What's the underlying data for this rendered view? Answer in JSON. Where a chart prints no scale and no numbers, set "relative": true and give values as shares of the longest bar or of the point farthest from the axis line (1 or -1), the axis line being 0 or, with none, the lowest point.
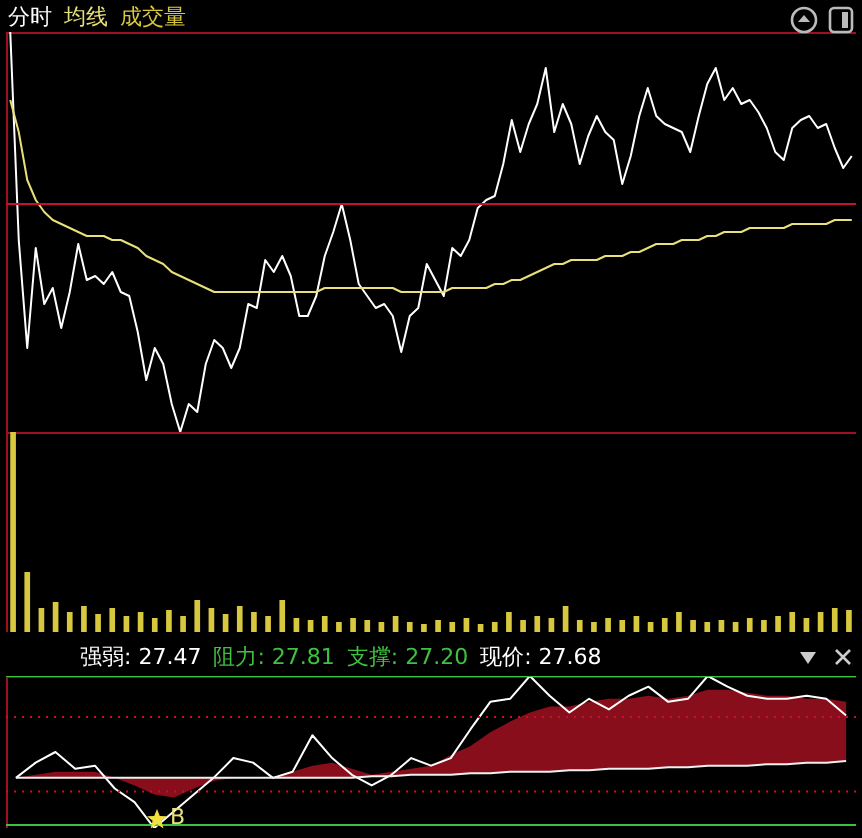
{
  "chart_data": [
    {
      "type": "line",
      "relative": true,
      "legend": "top left",
      "categories": [
        null,
        null,
        null,
        null,
        null,
        null,
        null,
        null,
        null,
        null,
        null,
        null,
        null,
        null,
        null,
        null,
        null,
        null,
        null,
        null,
        null,
        null,
        null,
        null,
        null,
        null,
        null,
        null,
        null,
        null,
        null,
        null,
        null,
        null,
        null,
        null,
        null,
        null,
        null,
        null,
        null,
        null,
        null,
        null,
        null,
        null,
        null,
        null,
        null,
        null,
        null,
        null,
        null,
        null,
        null,
        null,
        null,
        null,
        null,
        null,
        null,
        null,
        null,
        null,
        null,
        null,
        null,
        null,
        null,
        null,
        null,
        null,
        null,
        null,
        null,
        null,
        null,
        null,
        null,
        null,
        null,
        null,
        null,
        null,
        null,
        null,
        null,
        null,
        null,
        null,
        null,
        null,
        null,
        null,
        null,
        null,
        null,
        null,
        null,
        null
      ],
      "series": [
        {
          "name": "分时",
          "color": "#ffffff",
          "values": [
            1.0,
            0.48,
            0.21,
            0.46,
            0.32,
            0.36,
            0.26,
            0.35,
            0.47,
            0.38,
            0.39,
            0.37,
            0.4,
            0.35,
            0.34,
            0.25,
            0.13,
            0.21,
            0.17,
            0.07,
            0.0,
            0.07,
            0.05,
            0.17,
            0.23,
            0.21,
            0.16,
            0.21,
            0.32,
            0.31,
            0.43,
            0.4,
            0.44,
            0.39,
            0.29,
            0.29,
            0.34,
            0.44,
            0.5,
            0.57,
            0.48,
            0.37,
            0.34,
            0.31,
            0.32,
            0.29,
            0.2,
            0.29,
            0.31,
            0.42,
            0.38,
            0.34,
            0.46,
            0.44,
            0.48,
            0.56,
            0.58,
            0.59,
            0.67,
            0.78,
            0.7,
            0.77,
            0.82,
            0.91,
            0.75,
            0.82,
            0.77,
            0.67,
            0.74,
            0.79,
            0.75,
            0.73,
            0.62,
            0.69,
            0.79,
            0.86,
            0.79,
            0.77,
            0.76,
            0.75,
            0.7,
            0.79,
            0.87,
            0.91,
            0.83,
            0.86,
            0.82,
            0.83,
            0.8,
            0.76,
            0.7,
            0.68,
            0.76,
            0.78,
            0.79,
            0.76,
            0.77,
            0.71,
            0.66,
            0.69
          ]
        },
        {
          "name": "均线",
          "color": "#e8e07a",
          "values": [
            0.83,
            0.75,
            0.63,
            0.58,
            0.55,
            0.53,
            0.52,
            0.51,
            0.5,
            0.49,
            0.49,
            0.49,
            0.48,
            0.48,
            0.47,
            0.46,
            0.44,
            0.43,
            0.42,
            0.4,
            0.39,
            0.38,
            0.37,
            0.36,
            0.35,
            0.35,
            0.35,
            0.35,
            0.35,
            0.35,
            0.35,
            0.35,
            0.35,
            0.35,
            0.35,
            0.35,
            0.35,
            0.36,
            0.36,
            0.36,
            0.36,
            0.36,
            0.36,
            0.36,
            0.36,
            0.36,
            0.35,
            0.35,
            0.35,
            0.35,
            0.35,
            0.35,
            0.36,
            0.36,
            0.36,
            0.36,
            0.36,
            0.37,
            0.37,
            0.38,
            0.38,
            0.39,
            0.4,
            0.41,
            0.42,
            0.42,
            0.43,
            0.43,
            0.43,
            0.43,
            0.44,
            0.44,
            0.44,
            0.45,
            0.45,
            0.46,
            0.47,
            0.47,
            0.47,
            0.48,
            0.48,
            0.48,
            0.49,
            0.49,
            0.5,
            0.5,
            0.5,
            0.51,
            0.51,
            0.51,
            0.51,
            0.51,
            0.52,
            0.52,
            0.52,
            0.52,
            0.52,
            0.53,
            0.53,
            0.53
          ]
        }
      ],
      "ref_lines": [
        {
          "axis": "y",
          "value": 0.57,
          "color": "#c8102e"
        }
      ]
    },
    {
      "type": "bar",
      "relative": true,
      "categories": [
        null,
        null,
        null,
        null,
        null,
        null,
        null,
        null,
        null,
        null,
        null,
        null,
        null,
        null,
        null,
        null,
        null,
        null,
        null,
        null,
        null,
        null,
        null,
        null,
        null,
        null,
        null,
        null,
        null,
        null,
        null,
        null,
        null,
        null,
        null,
        null,
        null,
        null,
        null,
        null,
        null,
        null,
        null,
        null,
        null,
        null,
        null,
        null,
        null,
        null,
        null,
        null,
        null,
        null,
        null,
        null,
        null,
        null,
        null,
        null
      ],
      "series": [
        {
          "name": "成交量",
          "color": "#d8c840",
          "values": [
            1.0,
            0.3,
            0.12,
            0.15,
            0.1,
            0.13,
            0.09,
            0.12,
            0.08,
            0.1,
            0.07,
            0.11,
            0.08,
            0.16,
            0.12,
            0.09,
            0.13,
            0.1,
            0.08,
            0.16,
            0.07,
            0.06,
            0.08,
            0.05,
            0.07,
            0.06,
            0.05,
            0.08,
            0.05,
            0.04,
            0.06,
            0.05,
            0.07,
            0.04,
            0.05,
            0.1,
            0.06,
            0.08,
            0.07,
            0.13,
            0.06,
            0.05,
            0.07,
            0.06,
            0.08,
            0.05,
            0.07,
            0.1,
            0.06,
            0.05,
            0.06,
            0.05,
            0.07,
            0.06,
            0.08,
            0.1,
            0.07,
            0.1,
            0.12,
            0.11
          ]
        }
      ]
    },
    {
      "type": "line",
      "relative": true,
      "categories": [
        null,
        null,
        null,
        null,
        null,
        null,
        null,
        null,
        null,
        null,
        null,
        null,
        null,
        null,
        null,
        null,
        null,
        null,
        null,
        null,
        null,
        null,
        null,
        null,
        null,
        null,
        null,
        null,
        null,
        null,
        null,
        null,
        null,
        null,
        null,
        null,
        null,
        null,
        null,
        null,
        null,
        null,
        null
      ],
      "series": [
        {
          "color": "#ffffff",
          "values": [
            0.33,
            0.43,
            0.5,
            0.39,
            0.41,
            0.26,
            0.17,
            0.0,
            0.11,
            0.22,
            0.33,
            0.46,
            0.43,
            0.33,
            0.37,
            0.61,
            0.46,
            0.35,
            0.28,
            0.35,
            0.46,
            0.41,
            0.46,
            0.65,
            0.83,
            0.85,
            1.0,
            0.87,
            0.76,
            0.85,
            0.78,
            0.87,
            0.93,
            0.83,
            0.85,
            1.0,
            0.93,
            0.87,
            0.85,
            0.85,
            0.87,
            0.85,
            0.74
          ]
        },
        {
          "color": "#f0f0f0",
          "values": [
            0.33,
            0.33,
            0.33,
            0.33,
            0.33,
            0.33,
            0.33,
            0.33,
            0.33,
            0.33,
            0.33,
            0.33,
            0.33,
            0.33,
            0.33,
            0.33,
            0.33,
            0.33,
            0.34,
            0.34,
            0.35,
            0.35,
            0.35,
            0.36,
            0.36,
            0.37,
            0.37,
            0.37,
            0.38,
            0.38,
            0.39,
            0.39,
            0.39,
            0.4,
            0.4,
            0.41,
            0.41,
            0.41,
            0.42,
            0.42,
            0.43,
            0.43,
            0.44
          ],
          "lower": [
            0.33,
            0.33,
            0.33,
            0.33,
            0.33,
            0.33,
            0.28,
            0.22,
            0.2,
            0.26,
            0.31,
            0.33,
            0.33,
            0.33,
            0.33,
            0.33,
            0.33,
            0.33,
            0.34,
            0.34,
            0.35,
            0.35,
            0.35,
            0.36,
            0.36,
            0.37,
            0.37,
            0.37,
            0.38,
            0.38,
            0.39,
            0.39,
            0.39,
            0.4,
            0.4,
            0.41,
            0.41,
            0.41,
            0.42,
            0.42,
            0.43,
            0.43,
            0.44
          ],
          "upper": [
            0.33,
            0.35,
            0.37,
            0.37,
            0.37,
            0.33,
            0.33,
            0.33,
            0.33,
            0.33,
            0.33,
            0.33,
            0.33,
            0.33,
            0.37,
            0.41,
            0.43,
            0.39,
            0.35,
            0.37,
            0.39,
            0.41,
            0.48,
            0.54,
            0.63,
            0.7,
            0.76,
            0.8,
            0.8,
            0.83,
            0.85,
            0.85,
            0.87,
            0.85,
            0.87,
            0.91,
            0.91,
            0.89,
            0.87,
            0.87,
            0.85,
            0.85,
            0.83
          ]
        }
      ],
      "ref_lines": [
        {
          "axis": "y",
          "value": 1.0,
          "color": "#40c040",
          "line_style": "solid"
        },
        {
          "axis": "y",
          "value": 0.02,
          "color": "#40c040",
          "line_style": "solid"
        },
        {
          "axis": "y",
          "value": 0.73,
          "color": "#c8102e",
          "line_style": "dotted"
        },
        {
          "axis": "y",
          "value": 0.24,
          "color": "#c8102e",
          "line_style": "dotted"
        }
      ],
      "annotations": [
        "强弱: 27.47",
        "阻力: 27.81",
        "支撑: 27.20",
        "现价: 27.68",
        "B"
      ]
    }
  ]
}
